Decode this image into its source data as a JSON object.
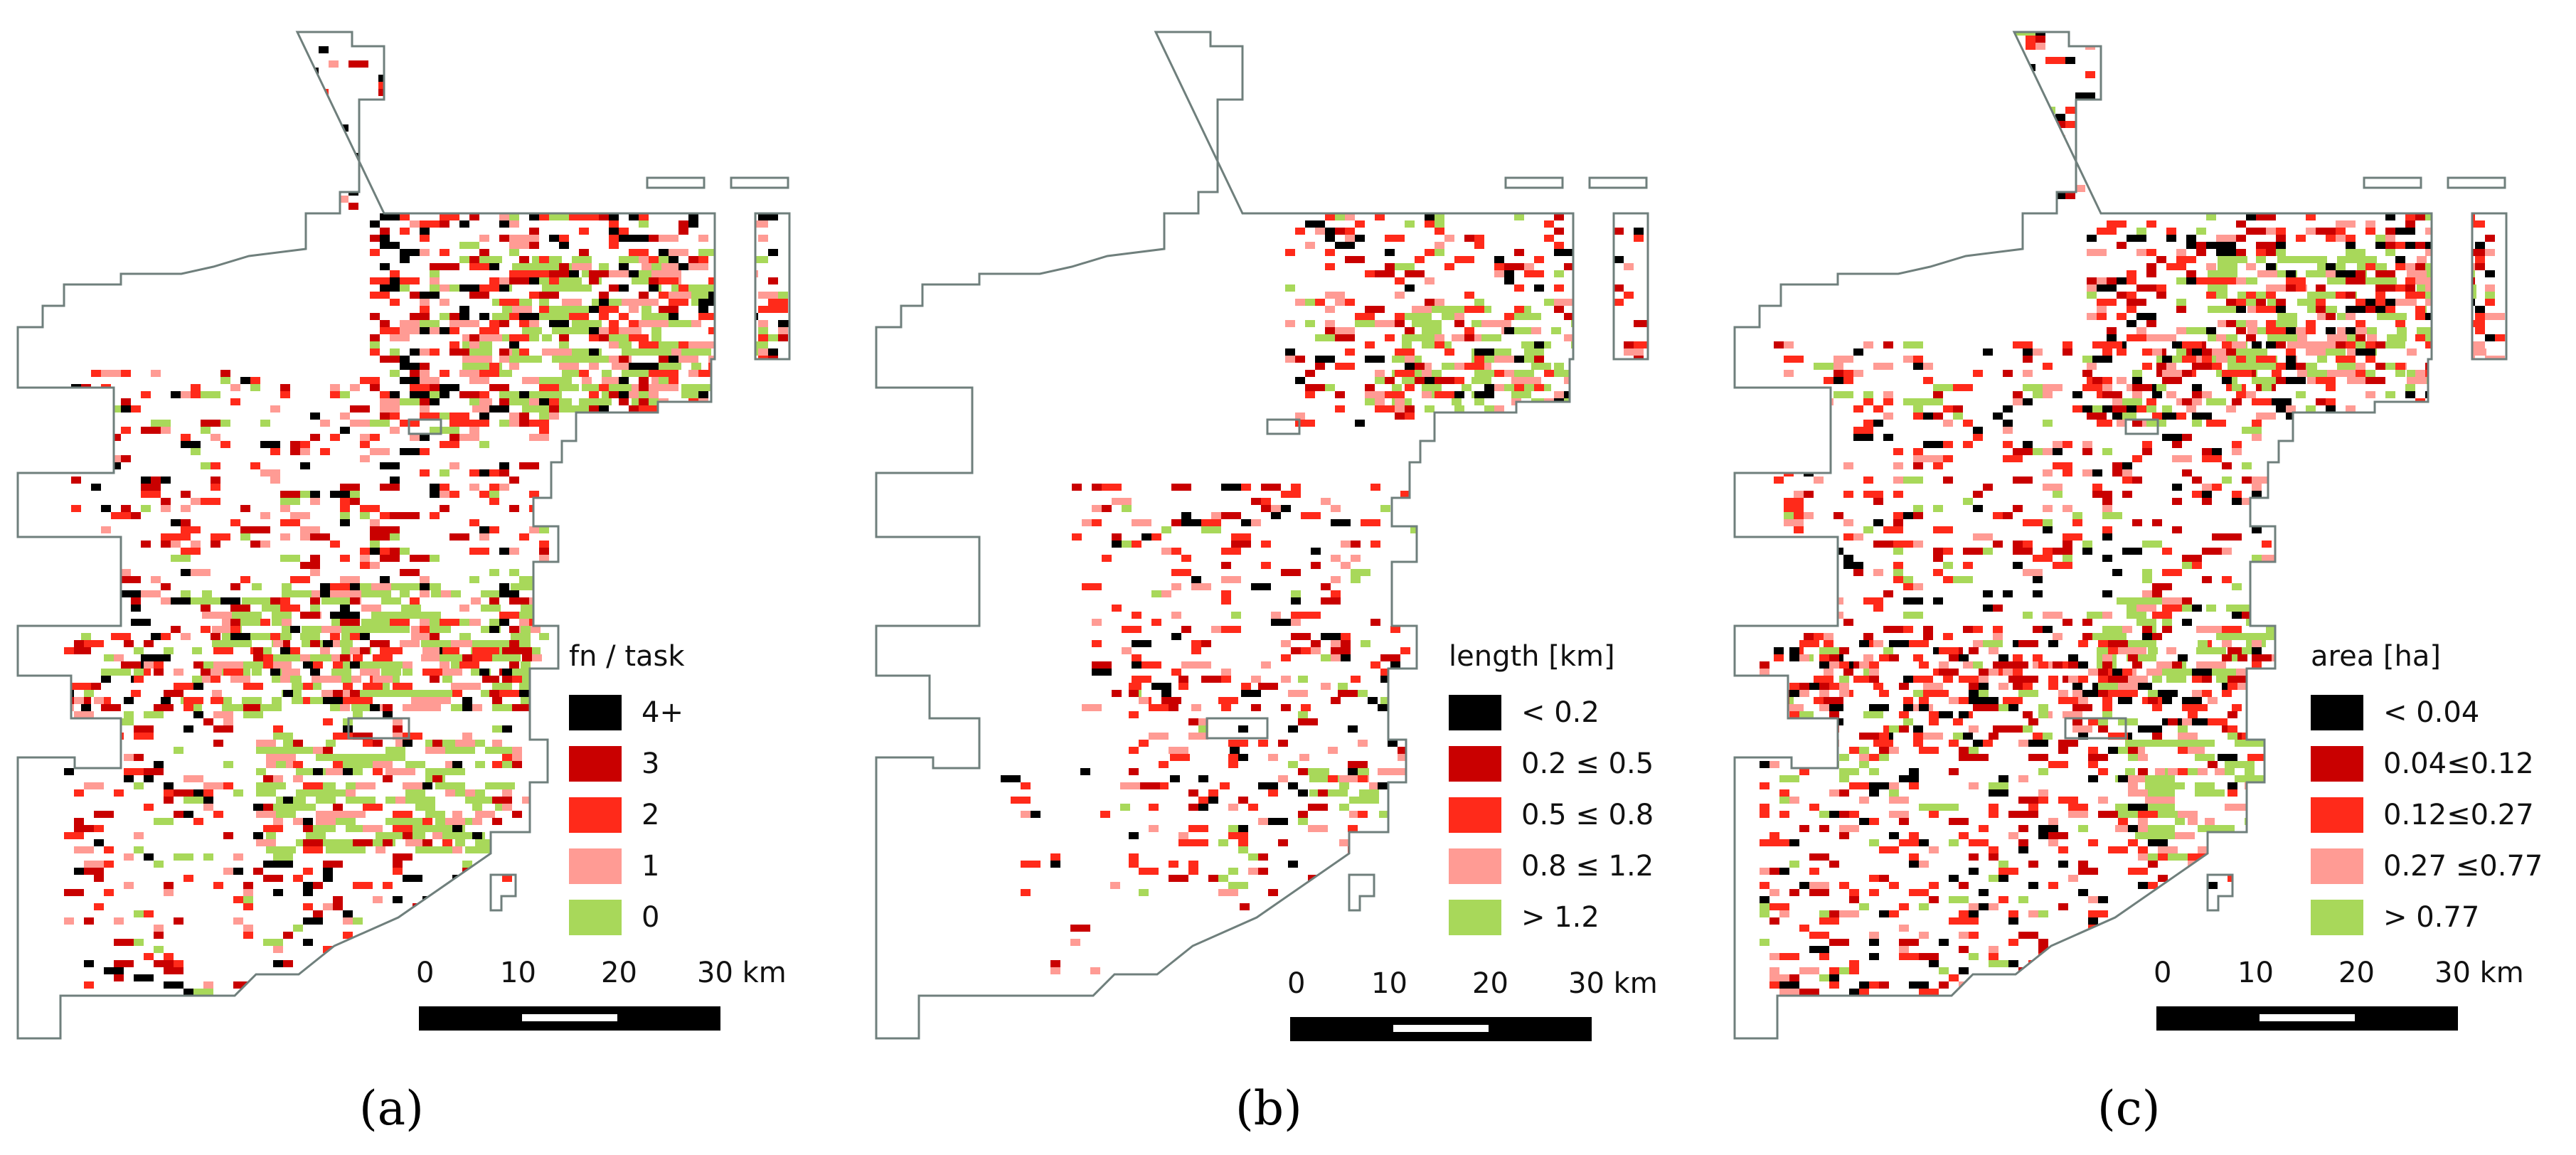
{
  "colors": {
    "c0": "#000000",
    "c1": "#c90000",
    "c2": "#ff2a1a",
    "c3": "#ff9b94",
    "c4": "#a8d85a",
    "outline": "#6f7f7c"
  },
  "panels": [
    {
      "caption": "(a)",
      "legend": {
        "title": "fn / task",
        "items": [
          {
            "label": "4+",
            "color": "#000000"
          },
          {
            "label": "3",
            "color": "#c90000"
          },
          {
            "label": "2",
            "color": "#ff2a1a"
          },
          {
            "label": "1",
            "color": "#ff9b94"
          },
          {
            "label": "0",
            "color": "#a8d85a"
          }
        ]
      },
      "scale": {
        "ticks": [
          "0",
          "10",
          "20",
          "30 km"
        ]
      }
    },
    {
      "caption": "(b)",
      "legend": {
        "title": "length [km]",
        "items": [
          {
            "label": "< 0.2",
            "color": "#000000"
          },
          {
            "label": "0.2 ≤ 0.5",
            "color": "#c90000"
          },
          {
            "label": "0.5 ≤ 0.8",
            "color": "#ff2a1a"
          },
          {
            "label": "0.8 ≤ 1.2",
            "color": "#ff9b94"
          },
          {
            "label": "> 1.2",
            "color": "#a8d85a"
          }
        ]
      },
      "scale": {
        "ticks": [
          "0",
          "10",
          "20",
          "30 km"
        ]
      }
    },
    {
      "caption": "(c)",
      "legend": {
        "title": "area [ha]",
        "items": [
          {
            "label": "< 0.04",
            "color": "#000000"
          },
          {
            "label": "0.04≤0.12",
            "color": "#c90000"
          },
          {
            "label": "0.12≤0.27",
            "color": "#ff2a1a"
          },
          {
            "label": "0.27 ≤0.77",
            "color": "#ff9b94"
          },
          {
            "label": "> 0.77",
            "color": "#a8d85a"
          }
        ]
      },
      "scale": {
        "ticks": [
          "0",
          "10",
          "20",
          "30 km"
        ]
      }
    }
  ]
}
